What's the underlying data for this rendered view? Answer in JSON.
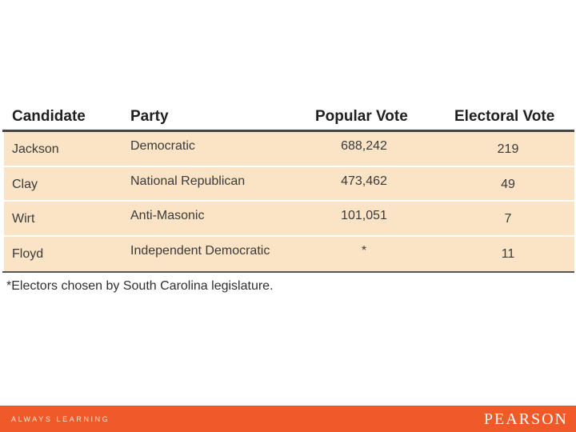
{
  "table": {
    "headers": {
      "candidate": "Candidate",
      "party": "Party",
      "popular_vote": "Popular Vote",
      "electoral_vote": "Electoral Vote"
    },
    "rows": [
      {
        "candidate": "Jackson",
        "party": "Democratic",
        "popular_vote": "688,242",
        "electoral_vote": "219"
      },
      {
        "candidate": "Clay",
        "party": "National Republican",
        "popular_vote": "473,462",
        "electoral_vote": "49"
      },
      {
        "candidate": "Wirt",
        "party": "Anti-Masonic",
        "popular_vote": "101,051",
        "electoral_vote": "7"
      },
      {
        "candidate": "Floyd",
        "party": "Independent Democratic",
        "popular_vote": "*",
        "electoral_vote": "11"
      }
    ],
    "footnote": "*Electors chosen by South Carolina legislature."
  },
  "footer": {
    "tagline": "ALWAYS LEARNING",
    "logo": "PEARSON"
  },
  "colors": {
    "table_fill": "#fbe3c5",
    "footer_bar": "#f05a28"
  }
}
